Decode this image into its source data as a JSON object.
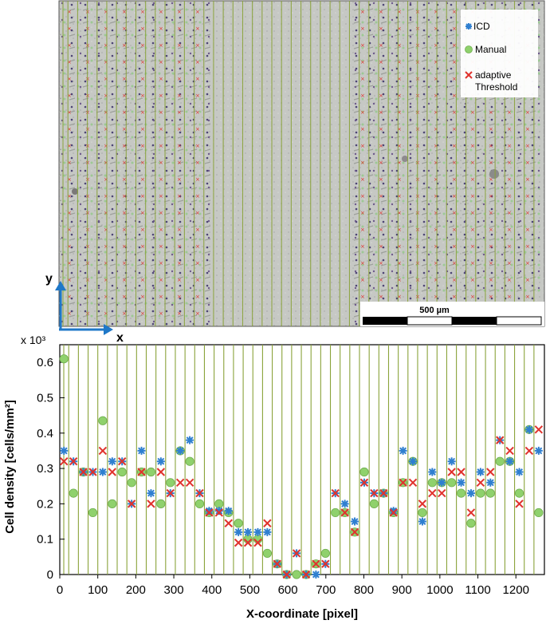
{
  "micrograph": {
    "axis_labels": {
      "x": "x",
      "y": "y"
    },
    "scale_bar_label": "500 µm",
    "legend": [
      {
        "name": "ICD",
        "marker": "star",
        "color": "#2f7fd0"
      },
      {
        "name": "Manual",
        "marker": "circle",
        "color": "#8fd16c"
      },
      {
        "name": "adaptive Threshold",
        "marker": "cross",
        "color": "#e0322d"
      }
    ]
  },
  "colors": {
    "grid_line": "#8aa33a",
    "icd": "#2f7fd0",
    "manual": "#8fd16c",
    "threshold": "#e0322d",
    "axis_arrow": "#1f78c8"
  },
  "chart_data": {
    "type": "scatter",
    "title": "",
    "xlabel": "X-coordinate [pixel]",
    "ylabel": "Cell density [cells/mm²]",
    "y_multiplier_label": "x 10³",
    "xlim": [
      0,
      1275
    ],
    "ylim": [
      0,
      0.65
    ],
    "xticks": [
      0,
      100,
      200,
      300,
      400,
      500,
      600,
      700,
      800,
      900,
      1000,
      1100,
      1200
    ],
    "yticks": [
      0,
      0.1,
      0.2,
      0.3,
      0.4,
      0.5,
      0.6
    ],
    "ytick_labels": [
      "0",
      "0.1",
      "0.2",
      "0.3",
      "0.4",
      "0.5",
      "0.6"
    ],
    "x": [
      11,
      36,
      62,
      87,
      113,
      138,
      164,
      189,
      215,
      240,
      266,
      291,
      317,
      342,
      368,
      393,
      419,
      444,
      470,
      495,
      521,
      546,
      572,
      597,
      623,
      648,
      674,
      699,
      725,
      750,
      776,
      801,
      827,
      852,
      878,
      903,
      929,
      954,
      980,
      1005,
      1031,
      1056,
      1082,
      1107,
      1133,
      1158,
      1184,
      1209,
      1235,
      1260
    ],
    "series": [
      {
        "name": "ICD",
        "marker": "star",
        "values": [
          0.35,
          0.32,
          0.29,
          0.29,
          0.29,
          0.32,
          0.32,
          0.2,
          0.35,
          0.23,
          0.32,
          0.23,
          0.35,
          0.38,
          0.23,
          0.18,
          0.18,
          0.18,
          0.12,
          0.12,
          0.12,
          0.12,
          0.03,
          0.0,
          0.06,
          0.0,
          0.0,
          0.03,
          0.23,
          0.2,
          0.15,
          0.26,
          0.23,
          0.23,
          0.18,
          0.35,
          0.32,
          0.15,
          0.29,
          0.26,
          0.32,
          0.26,
          0.23,
          0.29,
          0.26,
          0.38,
          0.32,
          0.29,
          0.41,
          0.35
        ]
      },
      {
        "name": "Manual",
        "marker": "circle",
        "values": [
          0.61,
          0.23,
          0.29,
          0.175,
          0.435,
          0.2,
          0.29,
          0.26,
          0.29,
          0.29,
          0.2,
          0.26,
          0.35,
          0.32,
          0.2,
          0.175,
          0.2,
          0.175,
          0.145,
          0.1,
          0.1,
          0.06,
          0.03,
          0.0,
          0.0,
          0.0,
          0.03,
          0.06,
          0.175,
          0.175,
          0.12,
          0.29,
          0.2,
          0.23,
          0.175,
          0.26,
          0.32,
          0.175,
          0.26,
          0.26,
          0.26,
          0.23,
          0.145,
          0.23,
          0.23,
          0.32,
          0.32,
          0.23,
          0.41,
          0.175
        ]
      },
      {
        "name": "adaptive Threshold",
        "marker": "cross",
        "values": [
          0.32,
          0.32,
          0.29,
          0.29,
          0.35,
          0.29,
          0.32,
          0.2,
          0.29,
          0.2,
          0.29,
          0.23,
          0.26,
          0.26,
          0.23,
          0.175,
          0.175,
          0.145,
          0.09,
          0.09,
          0.09,
          0.145,
          0.03,
          0.0,
          0.06,
          0.0,
          0.03,
          0.03,
          0.23,
          0.175,
          0.12,
          0.26,
          0.23,
          0.23,
          0.175,
          0.26,
          0.26,
          0.2,
          0.23,
          0.23,
          0.29,
          0.29,
          0.175,
          0.26,
          0.29,
          0.38,
          0.35,
          0.2,
          0.35,
          0.41
        ]
      }
    ]
  }
}
